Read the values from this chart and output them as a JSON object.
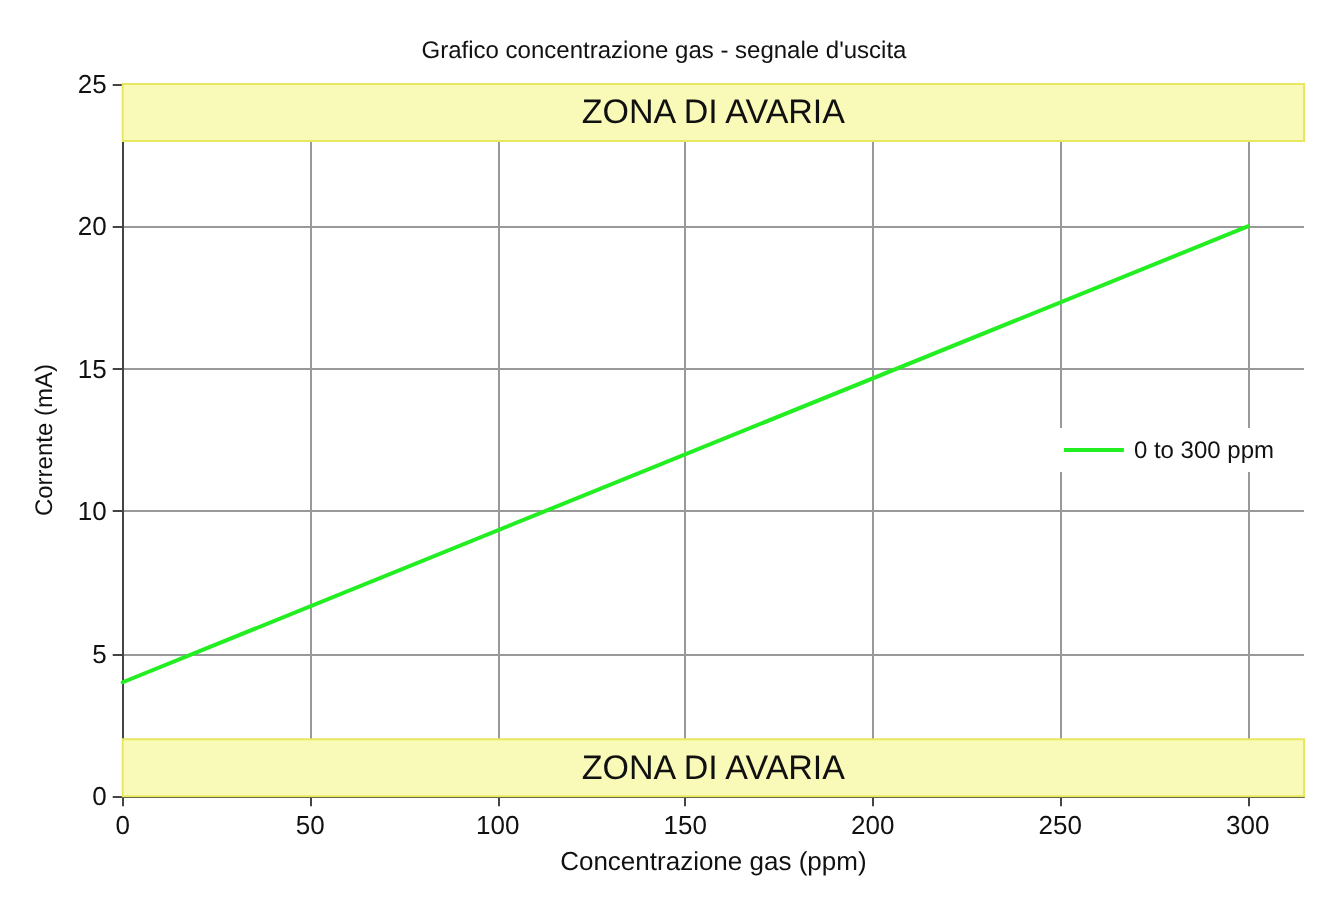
{
  "chart_data": {
    "type": "line",
    "title": "Grafico concentrazione gas - segnale d'uscita",
    "xlabel": "Concentrazione gas (ppm)",
    "ylabel": "Corrente (mA)",
    "x": [
      0,
      300
    ],
    "series": [
      {
        "name": "0 to 300 ppm",
        "color": "#22ee22",
        "values": [
          4,
          20
        ]
      }
    ],
    "xlim": [
      0,
      315
    ],
    "xticks": [
      0,
      50,
      100,
      150,
      200,
      250,
      300
    ],
    "ylim": [
      0,
      25
    ],
    "yticks": [
      0,
      5,
      10,
      15,
      20,
      25
    ],
    "bands": [
      {
        "axis": "y",
        "from": 23,
        "to": 25,
        "label": "ZONA DI AVARIA",
        "color": "#fafab8"
      },
      {
        "axis": "y",
        "from": 0,
        "to": 2,
        "label": "ZONA DI AVARIA",
        "color": "#fafab8"
      }
    ],
    "grid": true,
    "legend": "right",
    "marker": "none",
    "line_style": "solid"
  }
}
